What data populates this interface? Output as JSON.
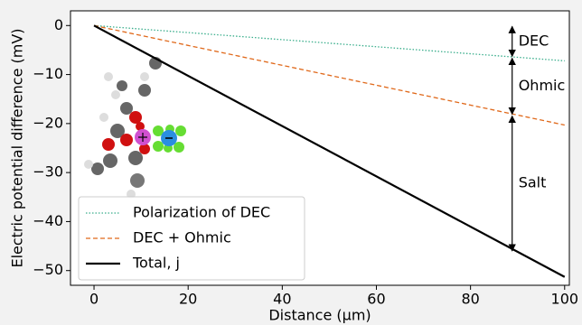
{
  "chart_data": {
    "type": "line",
    "xlabel": "Distance (µm)",
    "ylabel": "Electric potential difference (mV)",
    "x": [
      0,
      100
    ],
    "series": [
      {
        "name": "Polarization of DEC",
        "color": "#3aae8c",
        "style": "dotted",
        "values": [
          0,
          -7.2
        ]
      },
      {
        "name": "DEC + Ohmic",
        "color": "#e0691b",
        "style": "dashed",
        "values": [
          0,
          -20.3
        ]
      },
      {
        "name": "Total, j",
        "color": "#000000",
        "style": "solid",
        "values": [
          0,
          -51.3
        ]
      }
    ],
    "annotations": [
      "DEC",
      "Ohmic",
      "Salt"
    ],
    "xlim": [
      -5,
      101
    ],
    "ylim": [
      -53,
      3
    ],
    "xticks": [
      0,
      20,
      40,
      60,
      80,
      100
    ],
    "yticks": [
      0,
      {
        "value": -10,
        "label": "−10"
      },
      {
        "value": -20,
        "label": "−20"
      },
      {
        "value": -30,
        "label": "−30"
      },
      {
        "value": -40,
        "label": "−40"
      },
      {
        "value": -50,
        "label": "−50"
      }
    ],
    "legend": "lower left",
    "grid": false
  }
}
